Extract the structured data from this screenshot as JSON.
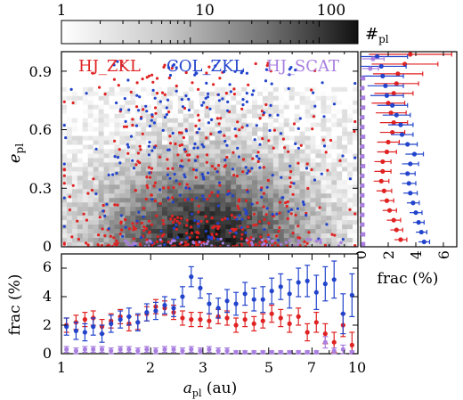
{
  "colorbar": {
    "ticks": [
      "1",
      "10",
      "100"
    ],
    "label": "#",
    "label_sub": "pl"
  },
  "main": {
    "ylabel": "e",
    "ylabel_sub": "pl",
    "yticks": [
      "0",
      "0.3",
      "0.6",
      "0.9"
    ],
    "legend": [
      {
        "name": "HJ_ZKL",
        "color": "#e02222"
      },
      {
        "name": "COL_ZKL",
        "color": "#2244cc"
      },
      {
        "name": "HJ_SCAT",
        "color": "#a97fe0"
      }
    ]
  },
  "right": {
    "xlabel": "frac (%)",
    "xticks": [
      "0",
      "2",
      "4",
      "6"
    ]
  },
  "bottom": {
    "ylabel": "frac (%)",
    "yticks": [
      "0",
      "2",
      "4",
      "6"
    ],
    "xticks": [
      "1",
      "2",
      "3",
      "5",
      "7",
      "10"
    ],
    "xlabel": "a",
    "xlabel_sub": "pl",
    "xlabel_unit": "(au)"
  },
  "colors": {
    "HJ_ZKL": "#e02222",
    "COL_ZKL": "#2244cc",
    "HJ_SCAT": "#a97fe0"
  },
  "chart_data": [
    {
      "type": "heatmap",
      "x_range": [
        1,
        10
      ],
      "x_scale": "log",
      "y_range": [
        0,
        1
      ],
      "colorbar_range": [
        1,
        200
      ],
      "colorbar_scale": "log",
      "note_series": [
        "HJ_ZKL",
        "COL_ZKL",
        "HJ_SCAT"
      ]
    },
    {
      "type": "scatter",
      "xlabel": "frac (%)",
      "ylabel": "e_pl",
      "xlim": [
        0,
        7
      ],
      "ylim": [
        0,
        1
      ],
      "y": [
        0.025,
        0.075,
        0.125,
        0.175,
        0.225,
        0.275,
        0.325,
        0.375,
        0.425,
        0.475,
        0.525,
        0.575,
        0.625,
        0.675,
        0.725,
        0.775,
        0.825,
        0.875,
        0.925,
        0.975
      ],
      "series": [
        {
          "name": "HJ_ZKL",
          "x": [
            2.9,
            2.6,
            2.4,
            2.1,
            1.9,
            1.7,
            1.5,
            1.6,
            1.6,
            1.9,
            2.0,
            2.3,
            2.4,
            2.2,
            2.0,
            2.4,
            2.6,
            2.7,
            3.2,
            3.6
          ],
          "xerr": [
            0.45,
            0.45,
            0.5,
            0.5,
            0.5,
            0.55,
            0.55,
            0.6,
            0.6,
            0.7,
            0.8,
            0.9,
            1.0,
            1.1,
            1.2,
            1.4,
            1.6,
            1.8,
            2.4,
            3.0
          ]
        },
        {
          "name": "COL_ZKL",
          "x": [
            4.6,
            4.4,
            4.2,
            4.0,
            3.8,
            3.6,
            3.5,
            3.4,
            3.6,
            3.9,
            3.4,
            3.0,
            2.9,
            2.6,
            2.3,
            1.9,
            1.8,
            1.6,
            1.5,
            1.2
          ],
          "xerr": [
            0.4,
            0.4,
            0.4,
            0.45,
            0.45,
            0.5,
            0.5,
            0.55,
            0.6,
            0.65,
            0.7,
            0.8,
            0.9,
            1.0,
            1.1,
            1.2,
            1.3,
            1.5,
            1.8,
            2.2
          ]
        },
        {
          "name": "HJ_SCAT",
          "x": [
            0.15,
            0.15,
            0.12,
            0.12,
            0.12,
            0.12,
            0.12,
            0.12,
            0.15,
            0.12,
            0.12,
            0.15,
            0.12,
            0.12,
            0.15,
            0.15,
            0.12,
            0.15,
            0.7,
            0.9
          ],
          "xerr": [
            0.15,
            0.15,
            0.12,
            0.12,
            0.12,
            0.12,
            0.12,
            0.12,
            0.15,
            0.12,
            0.12,
            0.15,
            0.12,
            0.12,
            0.15,
            0.15,
            0.12,
            0.15,
            0.6,
            0.8
          ]
        }
      ]
    },
    {
      "type": "scatter",
      "xlabel": "a_pl (au)",
      "ylabel": "frac (%)",
      "x_scale": "log",
      "xlim": [
        1,
        10
      ],
      "ylim": [
        0,
        7
      ],
      "x": [
        1.04,
        1.12,
        1.2,
        1.28,
        1.37,
        1.47,
        1.58,
        1.69,
        1.81,
        1.94,
        2.08,
        2.23,
        2.39,
        2.56,
        2.74,
        2.94,
        3.15,
        3.38,
        3.62,
        3.88,
        4.16,
        4.46,
        4.78,
        5.12,
        5.49,
        5.88,
        6.3,
        6.75,
        7.24,
        7.76,
        8.31,
        8.91,
        9.55
      ],
      "series": [
        {
          "name": "HJ_ZKL",
          "y": [
            2.0,
            2.2,
            2.4,
            2.5,
            1.9,
            2.3,
            2.6,
            2.1,
            2.2,
            2.8,
            3.3,
            3.2,
            2.9,
            2.5,
            2.4,
            2.4,
            2.3,
            2.6,
            2.5,
            2.0,
            2.4,
            2.1,
            2.3,
            2.8,
            2.5,
            2.1,
            2.6,
            1.5,
            2.2,
            1.4,
            0.8,
            2.0,
            0.6
          ],
          "yerr": [
            0.5,
            0.5,
            0.5,
            0.5,
            0.5,
            0.5,
            0.5,
            0.5,
            0.5,
            0.5,
            0.5,
            0.5,
            0.5,
            0.5,
            0.5,
            0.5,
            0.5,
            0.5,
            0.5,
            0.5,
            0.5,
            0.5,
            0.5,
            0.6,
            0.6,
            0.6,
            0.6,
            0.6,
            0.7,
            0.7,
            0.7,
            0.8,
            0.9
          ]
        },
        {
          "name": "COL_ZKL",
          "y": [
            1.9,
            1.6,
            1.5,
            1.9,
            1.4,
            2.1,
            2.4,
            2.6,
            2.2,
            2.9,
            3.0,
            3.4,
            3.2,
            4.0,
            5.4,
            4.6,
            3.5,
            3.2,
            3.7,
            3.5,
            4.2,
            3.8,
            3.8,
            4.4,
            4.7,
            4.2,
            5.0,
            5.1,
            4.3,
            4.9,
            5.2,
            2.8,
            4.1
          ],
          "yerr": [
            0.6,
            0.6,
            0.6,
            0.6,
            0.6,
            0.6,
            0.6,
            0.6,
            0.6,
            0.6,
            0.6,
            0.6,
            0.6,
            0.7,
            0.7,
            0.7,
            0.7,
            0.7,
            0.8,
            0.8,
            0.8,
            0.8,
            0.9,
            0.9,
            0.9,
            1.0,
            1.0,
            1.1,
            1.2,
            1.2,
            1.3,
            1.4,
            1.5
          ]
        },
        {
          "name": "HJ_SCAT",
          "y": [
            0.3,
            0.2,
            0.3,
            0.3,
            0.3,
            0.2,
            0.3,
            0.3,
            0.2,
            0.3,
            0.2,
            0.3,
            0.3,
            0.2,
            0.3,
            0.2,
            0.3,
            0.2,
            0.2,
            0.1,
            0.1,
            0.1,
            0.1,
            0.1,
            0.1,
            0.1,
            0.1,
            0.1,
            0.1,
            0.8,
            0.2,
            0.3,
            0.1
          ],
          "yerr": [
            0.2,
            0.2,
            0.2,
            0.2,
            0.2,
            0.2,
            0.2,
            0.2,
            0.2,
            0.2,
            0.2,
            0.2,
            0.2,
            0.2,
            0.2,
            0.2,
            0.2,
            0.2,
            0.2,
            0.1,
            0.1,
            0.1,
            0.1,
            0.1,
            0.1,
            0.1,
            0.1,
            0.1,
            0.1,
            0.4,
            0.2,
            0.3,
            0.1
          ]
        }
      ]
    }
  ]
}
